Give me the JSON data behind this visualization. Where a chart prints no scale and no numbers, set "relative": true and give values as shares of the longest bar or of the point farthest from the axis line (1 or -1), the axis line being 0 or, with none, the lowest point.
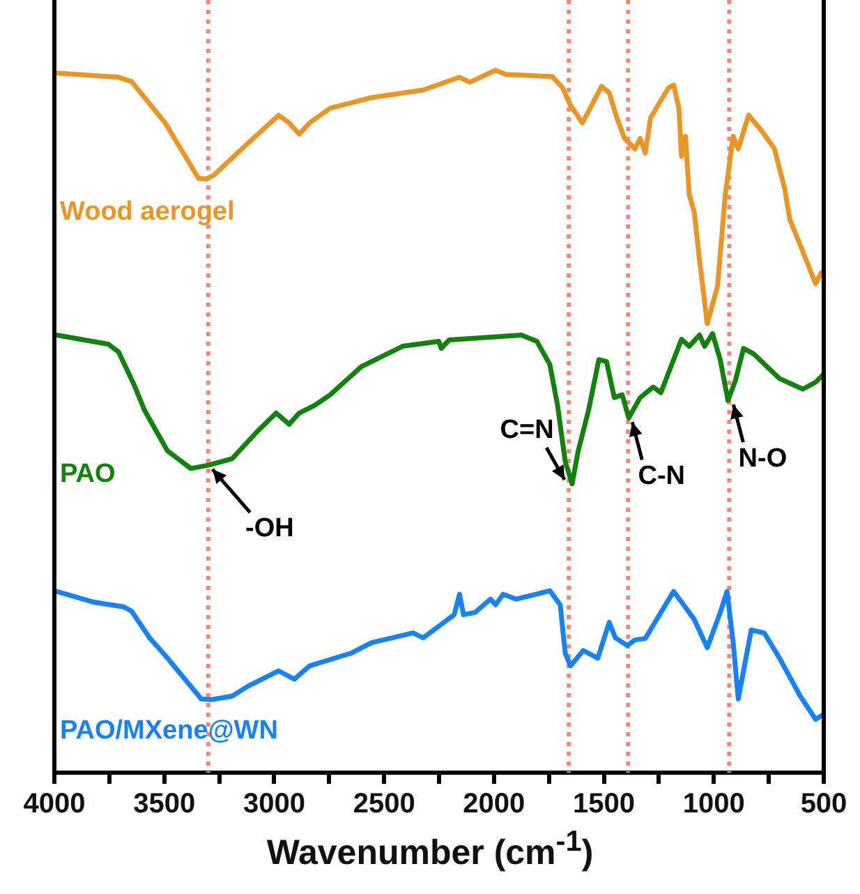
{
  "chart_data": {
    "type": "line",
    "xlabel": "Wavenumber (cm$^{-1}$)",
    "relative": true,
    "marker": "none",
    "tick_labels": "x",
    "xlim": [
      4000,
      500
    ],
    "xticks": [
      4000,
      {
        "value": 3750,
        "label": null
      },
      3500,
      {
        "value": 3250,
        "label": null
      },
      3000,
      {
        "value": 2750,
        "label": null
      },
      2500,
      {
        "value": 2250,
        "label": null
      },
      2000,
      {
        "value": 1750,
        "label": null
      },
      1500,
      {
        "value": 1250,
        "label": null
      },
      1000,
      {
        "value": 750,
        "label": null
      },
      500
    ],
    "series": [
      {
        "name": "Wood aerogel",
        "color": "#e8952a",
        "x": [
          3990,
          3708,
          3649,
          3496,
          3344,
          3308,
          3273,
          3120,
          2979,
          2932,
          2886,
          2839,
          2745,
          2557,
          2322,
          2157,
          2110,
          1993,
          1946,
          1735,
          1688,
          1652,
          1598,
          1511,
          1476,
          1441,
          1406,
          1359,
          1335,
          1312,
          1288,
          1241,
          1206,
          1183,
          1159,
          1147,
          1129,
          1112,
          1089,
          1065,
          1030,
          983,
          948,
          912,
          889,
          842,
          783,
          724,
          677,
          654,
          607,
          560,
          537,
          513,
          501
        ],
        "values": [
          0.996,
          0.99,
          0.984,
          0.925,
          0.846,
          0.845,
          0.851,
          0.896,
          0.936,
          0.925,
          0.909,
          0.925,
          0.946,
          0.961,
          0.972,
          0.99,
          0.983,
          1.0,
          0.994,
          0.991,
          0.975,
          0.95,
          0.925,
          0.977,
          0.968,
          0.932,
          0.903,
          0.888,
          0.903,
          0.882,
          0.932,
          0.957,
          0.975,
          0.979,
          0.946,
          0.877,
          0.906,
          0.823,
          0.798,
          0.729,
          0.639,
          0.693,
          0.823,
          0.906,
          0.888,
          0.936,
          0.914,
          0.888,
          0.83,
          0.787,
          0.751,
          0.714,
          0.696,
          0.711,
          0.714
        ]
      },
      {
        "name": "PAO",
        "color": "#14800e",
        "x": [
          3990,
          3755,
          3708,
          3637,
          3590,
          3485,
          3379,
          3297,
          3191,
          3073,
          2991,
          2932,
          2886,
          2815,
          2745,
          2604,
          2416,
          2251,
          2240,
          2204,
          1875,
          1805,
          1746,
          1711,
          1676,
          1645,
          1617,
          1570,
          1523,
          1488,
          1453,
          1417,
          1387,
          1335,
          1276,
          1241,
          1147,
          1112,
          1065,
          1042,
          1006,
          971,
          936,
          901,
          865,
          818,
          701,
          595,
          537,
          501
        ],
        "values": [
          0.623,
          0.61,
          0.599,
          0.552,
          0.516,
          0.458,
          0.433,
          0.438,
          0.447,
          0.487,
          0.512,
          0.496,
          0.512,
          0.523,
          0.538,
          0.578,
          0.607,
          0.614,
          0.604,
          0.616,
          0.623,
          0.614,
          0.581,
          0.523,
          0.443,
          0.411,
          0.458,
          0.516,
          0.588,
          0.585,
          0.534,
          0.538,
          0.505,
          0.534,
          0.549,
          0.541,
          0.617,
          0.607,
          0.623,
          0.607,
          0.625,
          0.588,
          0.53,
          0.559,
          0.604,
          0.596,
          0.561,
          0.546,
          0.556,
          0.567
        ]
      },
      {
        "name": "PAO/MXene@WN",
        "color": "#1a82f0",
        "x": [
          3990,
          3825,
          3684,
          3649,
          3567,
          3496,
          3332,
          3285,
          3191,
          3120,
          2979,
          2909,
          2839,
          2651,
          2557,
          2369,
          2322,
          2228,
          2181,
          2157,
          2139,
          2087,
          2016,
          1993,
          1958,
          1899,
          1746,
          1699,
          1676,
          1652,
          1594,
          1528,
          1476,
          1448,
          1394,
          1359,
          1312,
          1241,
          1183,
          1147,
          1089,
          1030,
          971,
          940,
          912,
          889,
          830,
          771,
          701,
          607,
          537,
          501
        ],
        "values": [
          0.258,
          0.243,
          0.236,
          0.23,
          0.192,
          0.167,
          0.105,
          0.104,
          0.109,
          0.123,
          0.145,
          0.133,
          0.152,
          0.17,
          0.185,
          0.199,
          0.192,
          0.214,
          0.225,
          0.254,
          0.225,
          0.228,
          0.247,
          0.239,
          0.254,
          0.247,
          0.259,
          0.239,
          0.17,
          0.152,
          0.174,
          0.163,
          0.214,
          0.192,
          0.181,
          0.189,
          0.191,
          0.228,
          0.258,
          0.243,
          0.218,
          0.178,
          0.228,
          0.258,
          0.185,
          0.105,
          0.203,
          0.199,
          0.163,
          0.109,
          0.076,
          0.083
        ]
      }
    ],
    "ref_lines": [
      {
        "axis": "x",
        "value": 3300,
        "color": "#f4877a",
        "line_style": "dotted"
      },
      {
        "axis": "x",
        "value": 1660,
        "color": "#f4877a",
        "line_style": "dotted"
      },
      {
        "axis": "x",
        "value": 1390,
        "color": "#f4877a",
        "line_style": "dotted"
      },
      {
        "axis": "x",
        "value": 930,
        "color": "#f4877a",
        "line_style": "dotted"
      }
    ],
    "annotations": [
      {
        "text": "-OH",
        "x": 3300,
        "y": 0.438
      },
      {
        "text": "C=N",
        "x": 1660,
        "y": 0.411
      },
      {
        "text": "C-N",
        "x": 1390,
        "y": 0.505
      },
      {
        "text": "N-O",
        "x": 930,
        "y": 0.53
      }
    ]
  }
}
